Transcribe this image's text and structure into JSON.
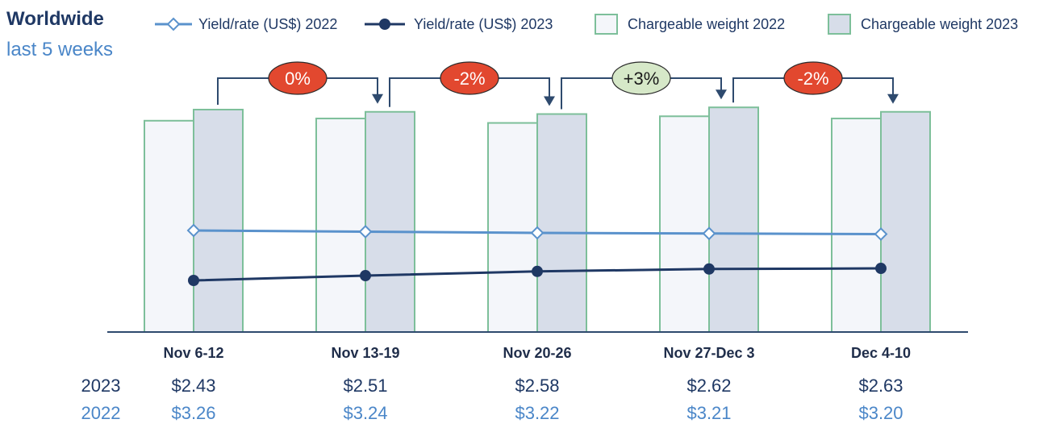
{
  "title": "Worldwide",
  "subtitle": "last 5 weeks",
  "colors": {
    "yield2022": "#5a92cc",
    "yield2023": "#1f3864",
    "bar2022_fill": "#f4f6fa",
    "bar2023_fill": "#d7dde9",
    "bar_stroke": "#7dbf9a",
    "axis": "#2e4a6e",
    "badge_negative": "#e2482f",
    "badge_positive": "#d6e8c8"
  },
  "chart_data": {
    "type": "bar",
    "categories": [
      "Nov 6-12",
      "Nov 13-19",
      "Nov 20-26",
      "Nov 27-Dec 3",
      "Dec 4-10"
    ],
    "series": [
      {
        "name": "Yield/rate (US$) 2022",
        "kind": "line",
        "values": [
          3.26,
          3.24,
          3.22,
          3.21,
          3.2
        ]
      },
      {
        "name": "Yield/rate (US$) 2023",
        "kind": "line",
        "values": [
          2.43,
          2.51,
          2.58,
          2.62,
          2.63
        ]
      },
      {
        "name": "Chargeable weight 2022",
        "kind": "bar",
        "values": [
          0.95,
          0.96,
          0.94,
          0.97,
          0.96
        ]
      },
      {
        "name": "Chargeable weight 2023",
        "kind": "bar",
        "values": [
          1.0,
          0.99,
          0.98,
          1.01,
          0.99
        ]
      }
    ],
    "changes": [
      "0%",
      "-2%",
      "+3%",
      "-2%"
    ],
    "table": {
      "rows": [
        {
          "label": "2023",
          "values": [
            "$2.43",
            "$2.51",
            "$2.58",
            "$2.62",
            "$2.63"
          ]
        },
        {
          "label": "2022",
          "values": [
            "$3.26",
            "$3.24",
            "$3.22",
            "$3.21",
            "$3.20"
          ]
        }
      ]
    },
    "legend_position": "top"
  }
}
